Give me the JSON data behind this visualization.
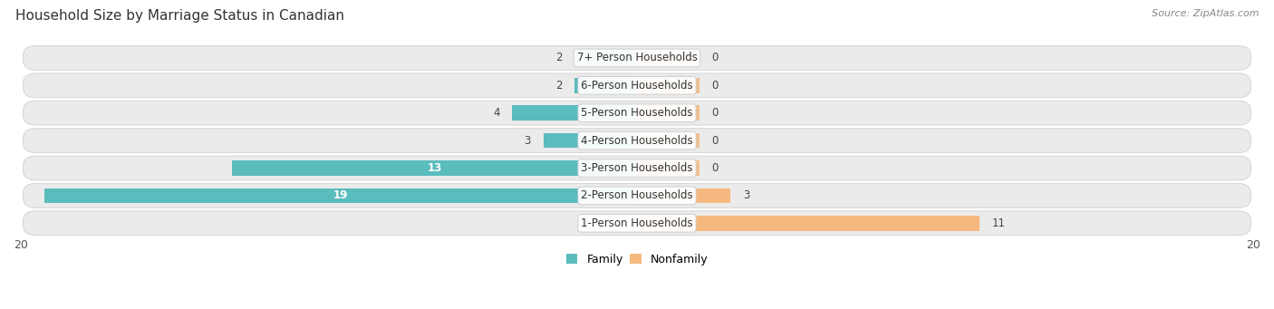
{
  "title": "Household Size by Marriage Status in Canadian",
  "source": "Source: ZipAtlas.com",
  "categories": [
    "7+ Person Households",
    "6-Person Households",
    "5-Person Households",
    "4-Person Households",
    "3-Person Households",
    "2-Person Households",
    "1-Person Households"
  ],
  "family_values": [
    2,
    2,
    4,
    3,
    13,
    19,
    0
  ],
  "nonfamily_values": [
    0,
    0,
    0,
    0,
    0,
    3,
    11
  ],
  "family_color": "#5bbcbe",
  "nonfamily_color": "#f5b97f",
  "xlim_left": -20,
  "xlim_right": 20,
  "title_fontsize": 11,
  "source_fontsize": 8,
  "bar_height": 0.55,
  "label_fontsize": 8.5,
  "row_bg_color": "#ebebeb",
  "row_border_color": "#d8d8d8"
}
